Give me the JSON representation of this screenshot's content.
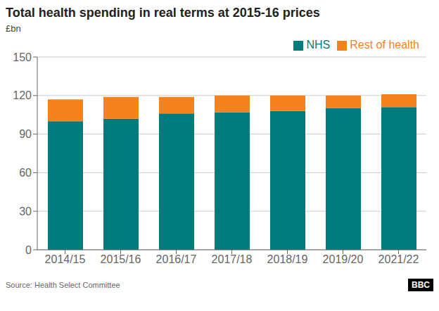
{
  "chart_data": {
    "type": "bar",
    "title": "Total health spending in real terms at 2015-16 prices",
    "ylabel": "£bn",
    "categories": [
      "2014/15",
      "2015/16",
      "2016/17",
      "2017/18",
      "2018/19",
      "2019/20",
      "2021/22"
    ],
    "series": [
      {
        "name": "NHS",
        "color": "#007b7b",
        "values": [
          100,
          102,
          106,
          107,
          108,
          110,
          111
        ]
      },
      {
        "name": "Rest of health",
        "color": "#f4831f",
        "values": [
          17,
          17,
          13,
          13,
          12,
          10,
          10
        ]
      }
    ],
    "stacked": true,
    "ylim": [
      0,
      150
    ],
    "yticks": [
      0,
      30,
      60,
      90,
      120,
      150
    ],
    "grid": true,
    "legend": "upper right",
    "annotations": [
      "Source: Health Select Committee",
      "BBC"
    ]
  }
}
